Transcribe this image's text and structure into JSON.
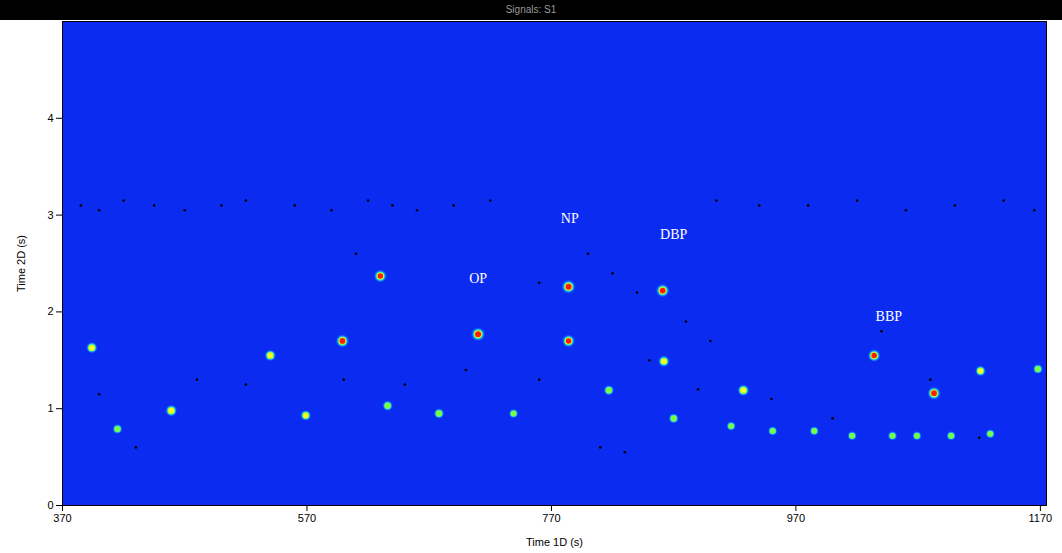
{
  "chart_data": {
    "type": "contour",
    "title": "Signals: S1",
    "x_label": "Time 1D (s)",
    "y_label": "Time 2D (s)",
    "xlim": [
      370,
      1175
    ],
    "ylim": [
      0,
      5
    ],
    "xticks": [
      370,
      570,
      770,
      970,
      1170
    ],
    "yticks": [
      0,
      1,
      2,
      3,
      4
    ],
    "peaks": {
      "x": [
        394,
        415,
        459,
        540,
        569,
        599,
        630,
        636,
        678,
        710,
        739,
        784,
        784,
        817,
        861,
        862,
        870,
        927,
        917,
        951,
        985,
        1034,
        1083,
        1121,
        1168,
        1016,
        1049,
        1069,
        1097,
        1129
      ],
      "y": [
        1.63,
        0.79,
        0.98,
        1.55,
        0.93,
        1.7,
        2.37,
        1.03,
        0.95,
        1.77,
        0.95,
        2.26,
        1.7,
        1.19,
        2.22,
        1.49,
        0.9,
        1.19,
        0.82,
        0.77,
        0.77,
        1.55,
        1.16,
        1.39,
        1.41,
        0.72,
        0.72,
        0.72,
        0.72,
        0.74
      ],
      "intensity": [
        0.45,
        0.25,
        0.5,
        0.45,
        0.35,
        0.85,
        0.75,
        0.3,
        0.3,
        1.0,
        0.2,
        1.0,
        0.75,
        0.3,
        0.9,
        0.45,
        0.25,
        0.5,
        0.2,
        0.2,
        0.2,
        0.7,
        0.85,
        0.35,
        0.25,
        0.2,
        0.2,
        0.2,
        0.2,
        0.2
      ]
    },
    "markers": {
      "x": [
        385,
        400,
        420,
        445,
        470,
        500,
        520,
        560,
        590,
        620,
        640,
        660,
        690,
        720,
        905,
        940,
        980,
        1020,
        1060,
        1100,
        1140,
        1165,
        400,
        430,
        480,
        520,
        600,
        650,
        700,
        760,
        800,
        820,
        840,
        880,
        900,
        950,
        1000,
        1040,
        1080,
        1120,
        610,
        760,
        810,
        830,
        850,
        890
      ],
      "y": [
        3.1,
        3.05,
        3.15,
        3.1,
        3.05,
        3.1,
        3.15,
        3.1,
        3.05,
        3.15,
        3.1,
        3.05,
        3.1,
        3.15,
        3.15,
        3.1,
        3.1,
        3.15,
        3.05,
        3.1,
        3.15,
        3.05,
        1.15,
        0.6,
        1.3,
        1.25,
        1.3,
        1.25,
        1.4,
        2.3,
        2.6,
        2.4,
        2.2,
        1.9,
        1.7,
        1.1,
        0.9,
        1.8,
        1.3,
        0.7,
        2.6,
        1.3,
        0.6,
        0.55,
        1.5,
        1.2
      ]
    },
    "annotations": [
      {
        "text": "OP",
        "x": 710,
        "y": 2.34
      },
      {
        "text": "NP",
        "x": 785,
        "y": 2.96
      },
      {
        "text": "DBP",
        "x": 870,
        "y": 2.8
      },
      {
        "text": "BBP",
        "x": 1046,
        "y": 1.95
      }
    ]
  }
}
